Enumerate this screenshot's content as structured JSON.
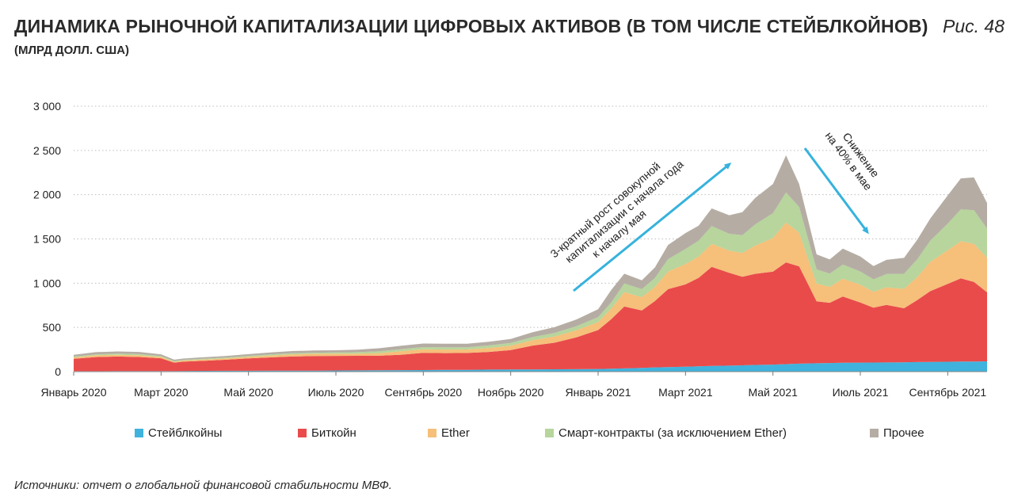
{
  "header": {
    "title": "ДИНАМИКА РЫНОЧНОЙ КАПИТАЛИЗАЦИИ ЦИФРОВЫХ АКТИВОВ (В ТОМ ЧИСЛЕ СТЕЙБЛКОЙНОВ)",
    "subtitle": "(МЛРД ДОЛЛ. США)",
    "figure_label": "Рис. 48"
  },
  "footer": {
    "source": "Источники: отчет о глобальной финансовой стабильности МВФ."
  },
  "chart_data": {
    "type": "area",
    "stacked": true,
    "ylim": [
      0,
      3000
    ],
    "y_ticks": [
      0,
      500,
      1000,
      1500,
      2000,
      2500,
      3000
    ],
    "y_tick_labels": [
      "0",
      "500",
      "1 000",
      "1 500",
      "2 000",
      "2 500",
      "3 000"
    ],
    "x_tick_labels": [
      "Январь 2020",
      "Март 2020",
      "Май 2020",
      "Июль 2020",
      "Сентябрь 2020",
      "Ноябрь 2020",
      "Январь 2021",
      "Март 2021",
      "Май 2021",
      "Июль 2021",
      "Сентябрь 2021"
    ],
    "x_tick_months": [
      0,
      2,
      4,
      6,
      8,
      10,
      12,
      14,
      16,
      18,
      20
    ],
    "x_month_range": [
      0,
      20.9
    ],
    "x_months": [
      0,
      0.5,
      1,
      1.5,
      2,
      2.3,
      2.5,
      3,
      3.5,
      4,
      4.5,
      5,
      5.5,
      6,
      6.5,
      7,
      7.5,
      8,
      8.5,
      9,
      9.5,
      10,
      10.5,
      11,
      11.5,
      12,
      12.3,
      12.6,
      13,
      13.3,
      13.6,
      14,
      14.3,
      14.6,
      15,
      15.3,
      15.6,
      16,
      16.3,
      16.6,
      17,
      17.3,
      17.6,
      18,
      18.3,
      18.6,
      19,
      19.3,
      19.6,
      20,
      20.3,
      20.6,
      20.9
    ],
    "legend_position": "bottom",
    "grid": true,
    "series": [
      {
        "name": "Стейблкойны",
        "color": "#3fb3dd",
        "values": [
          5,
          5,
          6,
          6,
          6,
          7,
          8,
          9,
          10,
          10,
          11,
          11,
          12,
          13,
          14,
          15,
          17,
          18,
          20,
          21,
          23,
          24,
          25,
          27,
          28,
          30,
          33,
          37,
          42,
          48,
          52,
          56,
          60,
          65,
          68,
          72,
          76,
          80,
          85,
          90,
          95,
          98,
          100,
          102,
          103,
          104,
          106,
          108,
          110,
          112,
          114,
          115,
          116
        ]
      },
      {
        "name": "Биткойн",
        "color": "#e94b4b",
        "values": [
          140,
          160,
          165,
          160,
          145,
          95,
          105,
          115,
          125,
          140,
          150,
          160,
          165,
          165,
          165,
          165,
          175,
          195,
          190,
          190,
          200,
          220,
          270,
          300,
          360,
          440,
          560,
          700,
          650,
          750,
          880,
          930,
          1000,
          1120,
          1050,
          1000,
          1030,
          1050,
          1150,
          1100,
          700,
          680,
          750,
          680,
          620,
          650,
          610,
          700,
          800,
          880,
          940,
          900,
          780
        ]
      },
      {
        "name": "Ether",
        "color": "#f6bf7a",
        "values": [
          15,
          20,
          20,
          20,
          15,
          10,
          12,
          14,
          15,
          18,
          22,
          25,
          25,
          25,
          25,
          30,
          40,
          40,
          40,
          40,
          45,
          50,
          60,
          70,
          80,
          90,
          120,
          160,
          150,
          160,
          200,
          230,
          240,
          260,
          250,
          270,
          320,
          380,
          450,
          380,
          200,
          180,
          200,
          200,
          180,
          200,
          220,
          260,
          330,
          380,
          420,
          430,
          390
        ]
      },
      {
        "name": "Смарт-контракты (за исключением Ether)",
        "color": "#b7d59c",
        "values": [
          10,
          10,
          12,
          12,
          10,
          8,
          8,
          9,
          10,
          10,
          12,
          12,
          12,
          14,
          16,
          20,
          22,
          25,
          25,
          25,
          28,
          30,
          35,
          40,
          45,
          55,
          70,
          100,
          90,
          100,
          140,
          170,
          180,
          200,
          190,
          200,
          240,
          280,
          340,
          290,
          160,
          150,
          160,
          150,
          140,
          150,
          170,
          200,
          240,
          300,
          360,
          380,
          330
        ]
      },
      {
        "name": "Прочее",
        "color": "#b5ada4",
        "values": [
          20,
          25,
          25,
          25,
          20,
          15,
          15,
          17,
          18,
          20,
          22,
          25,
          25,
          25,
          28,
          35,
          40,
          40,
          40,
          40,
          42,
          45,
          55,
          65,
          75,
          90,
          140,
          110,
          100,
          120,
          160,
          180,
          170,
          200,
          210,
          260,
          300,
          330,
          420,
          260,
          170,
          160,
          180,
          170,
          150,
          160,
          180,
          220,
          250,
          320,
          350,
          370,
          290
        ]
      }
    ],
    "annotations": [
      {
        "lines": [
          "3-кратный рост совокупной",
          "капитализации с начала года",
          "к началу мая"
        ]
      },
      {
        "lines": [
          "Снижение",
          "на 40% в мае"
        ]
      }
    ]
  }
}
